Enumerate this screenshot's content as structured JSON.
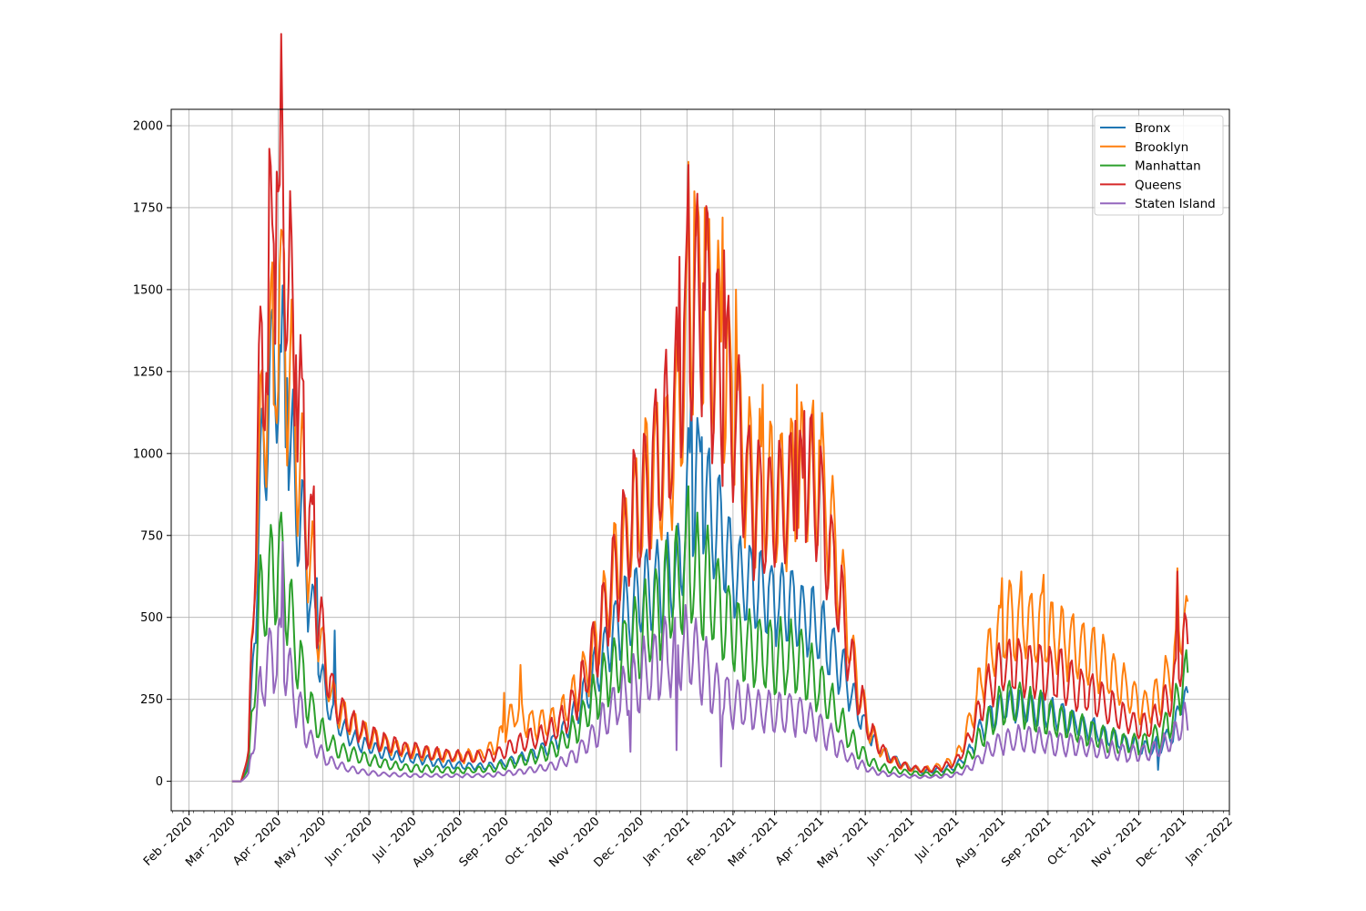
{
  "chart_data": {
    "type": "line",
    "title": "",
    "xlabel": "",
    "ylabel": "",
    "grid": true,
    "legend_position": "top-right",
    "ylim": [
      -90,
      2050
    ],
    "yticks": [
      0,
      250,
      500,
      750,
      1000,
      1250,
      1500,
      1750,
      2000
    ],
    "xlim_days": [
      -12,
      700
    ],
    "xticks": [
      {
        "label": "Feb - 2020",
        "day": 0
      },
      {
        "label": "Mar - 2020",
        "day": 29
      },
      {
        "label": "Apr - 2020",
        "day": 60
      },
      {
        "label": "May - 2020",
        "day": 90
      },
      {
        "label": "Jun - 2020",
        "day": 121
      },
      {
        "label": "Jul - 2020",
        "day": 151
      },
      {
        "label": "Aug - 2020",
        "day": 182
      },
      {
        "label": "Sep - 2020",
        "day": 213
      },
      {
        "label": "Oct - 2020",
        "day": 243
      },
      {
        "label": "Nov - 2020",
        "day": 274
      },
      {
        "label": "Dec - 2020",
        "day": 304
      },
      {
        "label": "Jan - 2021",
        "day": 335
      },
      {
        "label": "Feb - 2021",
        "day": 366
      },
      {
        "label": "Mar - 2021",
        "day": 394
      },
      {
        "label": "Apr - 2021",
        "day": 425
      },
      {
        "label": "May - 2021",
        "day": 455
      },
      {
        "label": "Jun - 2021",
        "day": 486
      },
      {
        "label": "Jul - 2021",
        "day": 516
      },
      {
        "label": "Aug - 2021",
        "day": 547
      },
      {
        "label": "Sep - 2021",
        "day": 578
      },
      {
        "label": "Oct - 2021",
        "day": 608
      },
      {
        "label": "Nov - 2021",
        "day": 639
      },
      {
        "label": "Dec - 2021",
        "day": 669
      },
      {
        "label": "Jan - 2022",
        "day": 700
      }
    ],
    "x_note": "x values are days since 2020-02-01; daily values are generated from the seven-day anchor points below",
    "anchors_day": [
      29,
      35,
      40,
      45,
      48,
      51,
      54,
      57,
      60,
      62,
      64,
      66,
      68,
      71,
      74,
      77,
      80,
      84,
      88,
      92,
      96,
      100,
      105,
      110,
      115,
      121,
      130,
      140,
      151,
      160,
      170,
      182,
      195,
      205,
      213,
      220,
      228,
      235,
      243,
      250,
      258,
      266,
      274,
      280,
      286,
      292,
      298,
      304,
      310,
      316,
      322,
      328,
      332,
      335,
      338,
      342,
      346,
      350,
      355,
      360,
      366,
      371,
      376,
      381,
      387,
      394,
      400,
      405,
      410,
      415,
      420,
      425,
      430,
      435,
      440,
      445,
      450,
      455,
      460,
      465,
      470,
      477,
      486,
      495,
      505,
      516,
      525,
      532,
      540,
      547,
      555,
      562,
      570,
      578,
      586,
      594,
      600,
      608,
      616,
      624,
      632,
      639,
      646,
      652,
      658,
      662,
      666,
      669,
      672
    ],
    "series": [
      {
        "name": "Bronx",
        "color": "#1f77b4",
        "amp": 0.22,
        "noise": 0.05,
        "spikes": [
          [
            62,
            1310
          ],
          [
            66,
            1230
          ],
          [
            86,
            620
          ],
          [
            98,
            460
          ],
          [
            338,
            1250
          ],
          [
            345,
            1050
          ],
          [
            652,
            35
          ]
        ],
        "anchors": [
          0,
          0,
          60,
          560,
          900,
          1050,
          1180,
          1250,
          1300,
          1320,
          1250,
          1100,
          990,
          930,
          860,
          760,
          620,
          500,
          360,
          260,
          210,
          180,
          150,
          130,
          115,
          105,
          90,
          75,
          70,
          65,
          55,
          48,
          45,
          48,
          55,
          65,
          78,
          90,
          110,
          140,
          190,
          260,
          340,
          400,
          450,
          510,
          540,
          560,
          580,
          600,
          620,
          640,
          700,
          820,
          920,
          920,
          880,
          840,
          780,
          720,
          650,
          620,
          600,
          590,
          570,
          560,
          550,
          530,
          520,
          500,
          480,
          450,
          420,
          380,
          330,
          280,
          220,
          170,
          130,
          100,
          80,
          60,
          40,
          30,
          35,
          45,
          90,
          150,
          200,
          230,
          240,
          230,
          220,
          210,
          200,
          180,
          170,
          155,
          140,
          125,
          115,
          105,
          100,
          110,
          130,
          150,
          210,
          280,
          230
        ]
      },
      {
        "name": "Brooklyn",
        "color": "#ff7f0e",
        "amp": 0.24,
        "noise": 0.05,
        "spikes": [
          [
            53,
            1200
          ],
          [
            57,
            1150
          ],
          [
            64,
            1610
          ],
          [
            69,
            1470
          ],
          [
            212,
            270
          ],
          [
            223,
            355
          ],
          [
            336,
            1890
          ],
          [
            340,
            1800
          ],
          [
            347,
            1750
          ],
          [
            359,
            1720
          ],
          [
            368,
            1500
          ],
          [
            386,
            1210
          ],
          [
            409,
            1210
          ],
          [
            424,
            1040
          ],
          [
            547,
            620
          ],
          [
            560,
            640
          ],
          [
            575,
            630
          ],
          [
            665,
            650
          ]
        ],
        "anchors": [
          0,
          0,
          80,
          750,
          1000,
          1130,
          1250,
          1350,
          1400,
          1420,
          1400,
          1300,
          1200,
          1100,
          1000,
          900,
          760,
          600,
          450,
          340,
          270,
          230,
          200,
          180,
          160,
          140,
          120,
          100,
          90,
          85,
          78,
          75,
          80,
          100,
          160,
          220,
          180,
          170,
          180,
          200,
          250,
          330,
          420,
          520,
          620,
          720,
          800,
          850,
          900,
          950,
          1000,
          1080,
          1200,
          1350,
          1450,
          1480,
          1460,
          1420,
          1350,
          1250,
          1150,
          1050,
          950,
          900,
          880,
          870,
          860,
          880,
          900,
          920,
          930,
          900,
          820,
          700,
          560,
          420,
          300,
          200,
          140,
          100,
          75,
          55,
          40,
          35,
          45,
          70,
          170,
          290,
          400,
          470,
          490,
          480,
          470,
          460,
          440,
          420,
          400,
          380,
          350,
          310,
          270,
          240,
          230,
          260,
          310,
          350,
          430,
          520,
          450
        ]
      },
      {
        "name": "Manhattan",
        "color": "#2ca02c",
        "amp": 0.28,
        "noise": 0.05,
        "spikes": [
          [
            60,
            680
          ],
          [
            336,
            900
          ],
          [
            342,
            820
          ]
        ],
        "anchors": [
          0,
          0,
          40,
          380,
          520,
          580,
          600,
          620,
          640,
          640,
          620,
          560,
          500,
          440,
          370,
          310,
          250,
          200,
          160,
          130,
          110,
          100,
          90,
          80,
          72,
          65,
          55,
          45,
          40,
          38,
          35,
          33,
          35,
          40,
          50,
          60,
          70,
          80,
          95,
          115,
          150,
          200,
          260,
          310,
          350,
          390,
          420,
          450,
          480,
          520,
          560,
          600,
          620,
          640,
          640,
          630,
          610,
          580,
          540,
          500,
          460,
          430,
          410,
          400,
          390,
          380,
          380,
          380,
          370,
          350,
          320,
          290,
          250,
          210,
          170,
          130,
          100,
          75,
          55,
          45,
          38,
          32,
          26,
          22,
          25,
          35,
          75,
          130,
          190,
          230,
          240,
          230,
          215,
          200,
          185,
          170,
          160,
          145,
          130,
          120,
          115,
          110,
          120,
          140,
          170,
          200,
          260,
          330,
          290
        ]
      },
      {
        "name": "Queens",
        "color": "#d62728",
        "amp": 0.24,
        "noise": 0.05,
        "spikes": [
          [
            53,
            1180
          ],
          [
            57,
            1640
          ],
          [
            59,
            1860
          ],
          [
            61,
            1820
          ],
          [
            63,
            1950
          ],
          [
            72,
            1300
          ],
          [
            77,
            1220
          ],
          [
            84,
            900
          ],
          [
            330,
            1600
          ],
          [
            336,
            1880
          ],
          [
            341,
            1700
          ],
          [
            346,
            1520
          ],
          [
            360,
            1620
          ],
          [
            408,
            1100
          ],
          [
            414,
            1130
          ],
          [
            420,
            960
          ],
          [
            665,
            640
          ]
        ],
        "anchors": [
          0,
          0,
          80,
          850,
          1200,
          1400,
          1550,
          1650,
          1750,
          1800,
          1750,
          1600,
          1450,
          1300,
          1150,
          1000,
          820,
          640,
          480,
          360,
          280,
          230,
          200,
          175,
          155,
          140,
          120,
          105,
          95,
          88,
          82,
          75,
          75,
          82,
          95,
          110,
          125,
          135,
          150,
          180,
          230,
          320,
          420,
          520,
          620,
          720,
          800,
          860,
          930,
          990,
          1050,
          1140,
          1250,
          1350,
          1400,
          1420,
          1410,
          1380,
          1320,
          1230,
          1120,
          1000,
          900,
          850,
          830,
          830,
          840,
          860,
          880,
          900,
          880,
          820,
          730,
          620,
          500,
          380,
          280,
          200,
          140,
          100,
          75,
          55,
          40,
          35,
          40,
          60,
          130,
          220,
          310,
          350,
          360,
          350,
          340,
          330,
          320,
          300,
          280,
          260,
          240,
          210,
          185,
          170,
          170,
          200,
          240,
          280,
          350,
          440,
          380
        ]
      },
      {
        "name": "Staten Island",
        "color": "#9467bd",
        "amp": 0.3,
        "noise": 0.06,
        "spikes": [
          [
            63,
            730
          ],
          [
            297,
            90
          ],
          [
            328,
            95
          ],
          [
            358,
            45
          ]
        ],
        "anchors": [
          0,
          0,
          20,
          180,
          280,
          330,
          360,
          380,
          390,
          390,
          380,
          340,
          300,
          260,
          220,
          180,
          140,
          110,
          85,
          70,
          60,
          50,
          42,
          36,
          30,
          26,
          22,
          20,
          18,
          18,
          17,
          17,
          18,
          20,
          24,
          28,
          33,
          38,
          45,
          55,
          75,
          110,
          150,
          190,
          230,
          270,
          300,
          320,
          340,
          360,
          380,
          400,
          410,
          400,
          390,
          370,
          340,
          310,
          280,
          260,
          240,
          230,
          220,
          215,
          210,
          210,
          210,
          210,
          205,
          195,
          180,
          160,
          140,
          115,
          90,
          70,
          55,
          42,
          32,
          26,
          22,
          18,
          15,
          13,
          15,
          20,
          40,
          70,
          100,
          120,
          130,
          130,
          125,
          120,
          115,
          110,
          105,
          100,
          95,
          90,
          85,
          85,
          90,
          100,
          115,
          130,
          160,
          190,
          160
        ]
      }
    ]
  }
}
